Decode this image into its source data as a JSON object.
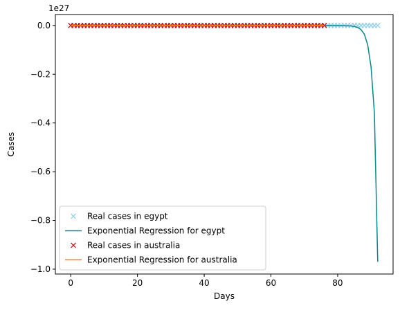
{
  "chart_data": {
    "type": "line",
    "xlabel": "Days",
    "ylabel": "Cases",
    "offset_text": "1e27",
    "xlim": [
      -4.6,
      96.6
    ],
    "ylim": [
      -1.02,
      0.045
    ],
    "xticks": [
      0,
      20,
      40,
      60,
      80
    ],
    "xtick_labels": [
      "0",
      "20",
      "40",
      "60",
      "80"
    ],
    "yticks": [
      0.0,
      -0.2,
      -0.4,
      -0.6,
      -0.8,
      -1.0
    ],
    "ytick_labels": [
      "0.0",
      "−0.2",
      "−0.4",
      "−0.6",
      "−0.8",
      "−1.0"
    ],
    "grid": false,
    "legend_position": "lower-left",
    "series": [
      {
        "name": "Real cases in egypt",
        "kind": "scatter",
        "marker": "x",
        "color": "#87ceeb",
        "x_range": [
          0,
          92
        ],
        "y_constant": 0
      },
      {
        "name": "Exponential Regression for egypt",
        "kind": "line",
        "color": "#008b8b",
        "x": [
          0,
          10,
          20,
          30,
          40,
          50,
          60,
          70,
          76,
          80,
          82,
          84,
          85,
          86,
          87,
          88,
          89,
          90,
          91,
          92
        ],
        "y": [
          0,
          0,
          0,
          0,
          0,
          0,
          0,
          0,
          0,
          -0.0003,
          -0.0008,
          -0.002,
          -0.004,
          -0.008,
          -0.017,
          -0.036,
          -0.08,
          -0.17,
          -0.36,
          -0.97
        ]
      },
      {
        "name": "Real cases in australia",
        "kind": "scatter",
        "marker": "x",
        "color": "#cc0000",
        "x_range": [
          0,
          76
        ],
        "y_constant": 0
      },
      {
        "name": "Exponential Regression for australia",
        "kind": "line",
        "color": "#ff7f0e",
        "x": [
          0,
          76
        ],
        "y": [
          0,
          0
        ]
      }
    ]
  }
}
